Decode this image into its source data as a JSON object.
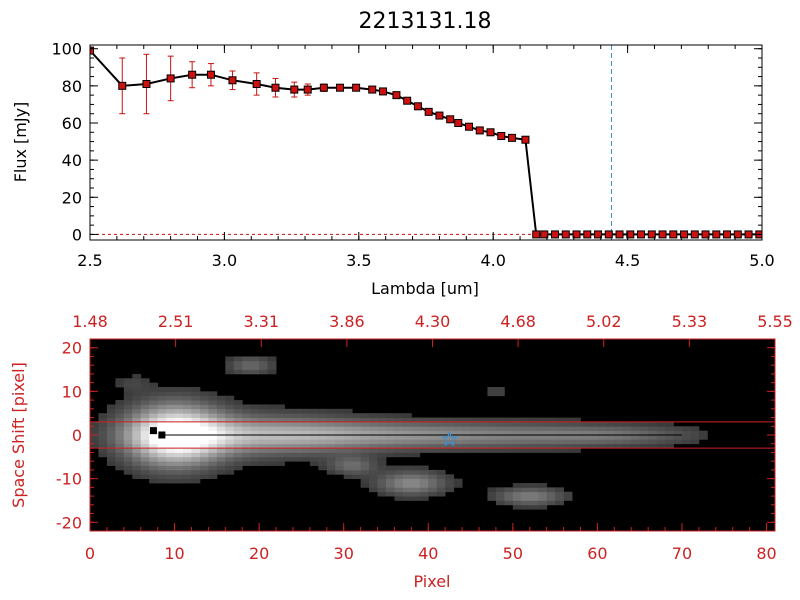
{
  "chart_data": [
    {
      "type": "line",
      "title": "2213131.18",
      "xlabel": "Lambda [um]",
      "ylabel": "Flux [mJy]",
      "xlim": [
        2.5,
        5.0
      ],
      "ylim": [
        -3,
        102
      ],
      "xticks": [
        "2.5",
        "3.0",
        "3.5",
        "4.0",
        "4.5",
        "5.0"
      ],
      "yticks": [
        "0",
        "20",
        "40",
        "60",
        "80",
        "100"
      ],
      "grid": false,
      "marker_color": "#cc1111",
      "errorbar_color": "#cc1111",
      "line_color": "#000000",
      "vline": {
        "x": 4.44,
        "color": "#3a8fd0"
      },
      "x": [
        2.5,
        2.62,
        2.71,
        2.8,
        2.88,
        2.95,
        3.03,
        3.12,
        3.19,
        3.26,
        3.31,
        3.37,
        3.43,
        3.49,
        3.55,
        3.59,
        3.64,
        3.68,
        3.72,
        3.76,
        3.8,
        3.84,
        3.87,
        3.91,
        3.95,
        3.99,
        4.03,
        4.07,
        4.12,
        4.16,
        4.19,
        4.23,
        4.27,
        4.31,
        4.35,
        4.39,
        4.43,
        4.47,
        4.51,
        4.55,
        4.59,
        4.63,
        4.67,
        4.71,
        4.75,
        4.79,
        4.83,
        4.87,
        4.91,
        4.95,
        4.99
      ],
      "y": [
        99,
        80,
        81,
        84,
        86,
        86,
        83,
        81,
        79,
        78,
        78,
        79,
        79,
        79,
        78,
        77,
        75,
        72,
        69,
        66,
        64,
        62,
        60,
        58,
        56,
        55,
        53,
        52,
        51,
        0,
        0,
        0,
        0,
        0,
        0,
        0,
        0,
        0,
        0,
        0,
        0,
        0,
        0,
        0,
        0,
        0,
        0,
        0,
        0,
        0,
        0
      ],
      "yerr": [
        0,
        15,
        16,
        12,
        7,
        6,
        5,
        6,
        5,
        4,
        3,
        2,
        1,
        1,
        1,
        1,
        1,
        1,
        1,
        1,
        1,
        1,
        1,
        1,
        1,
        1,
        1,
        1,
        1,
        0,
        0,
        0,
        0,
        0,
        0,
        0,
        0,
        0,
        0,
        0,
        0,
        0,
        0,
        0,
        0,
        0,
        0,
        0,
        0,
        0,
        0
      ]
    },
    {
      "type": "heatmap",
      "xlabel": "Pixel",
      "ylabel": "Space Shift [pixel]",
      "xlim": [
        0,
        81
      ],
      "ylim": [
        -22,
        22
      ],
      "xticks": [
        "0",
        "10",
        "20",
        "30",
        "40",
        "50",
        "60",
        "70",
        "80"
      ],
      "yticks": [
        "-20",
        "-10",
        "0",
        "10",
        "20"
      ],
      "top_axis_ticks": [
        "1.48",
        "2.51",
        "3.31",
        "3.86",
        "4.30",
        "4.68",
        "5.02",
        "5.33",
        "5.55"
      ],
      "axis_color": "#cc2222",
      "extraction_lines_y": [
        3,
        -3
      ],
      "trace_points": [
        {
          "x": 7.5,
          "y": 1
        },
        {
          "x": 8.5,
          "y": 0
        }
      ],
      "star_marker": {
        "x": 42.5,
        "y": -1,
        "color": "#3a8fd0"
      },
      "blobs": [
        {
          "x": 10,
          "y": 0,
          "sx": 4,
          "sy": 5,
          "amp": 1.0
        },
        {
          "x": 20,
          "y": 0,
          "sx": 9,
          "sy": 3.5,
          "amp": 0.45
        },
        {
          "x": 40,
          "y": 0,
          "sx": 16,
          "sy": 2.2,
          "amp": 0.45
        },
        {
          "x": 62,
          "y": 0,
          "sx": 7,
          "sy": 1.5,
          "amp": 0.2
        },
        {
          "x": 19,
          "y": 16,
          "sx": 2,
          "sy": 1.5,
          "amp": 0.3
        },
        {
          "x": 31,
          "y": -7,
          "sx": 2,
          "sy": 1.5,
          "amp": 0.3
        },
        {
          "x": 38,
          "y": -11,
          "sx": 3,
          "sy": 2,
          "amp": 0.45
        },
        {
          "x": 52,
          "y": -14,
          "sx": 3,
          "sy": 1.5,
          "amp": 0.4
        },
        {
          "x": 48,
          "y": 10,
          "sx": 1,
          "sy": 0.8,
          "amp": 0.15
        },
        {
          "x": 5,
          "y": 12,
          "sx": 1.5,
          "sy": 1.5,
          "amp": 0.12
        }
      ]
    }
  ]
}
